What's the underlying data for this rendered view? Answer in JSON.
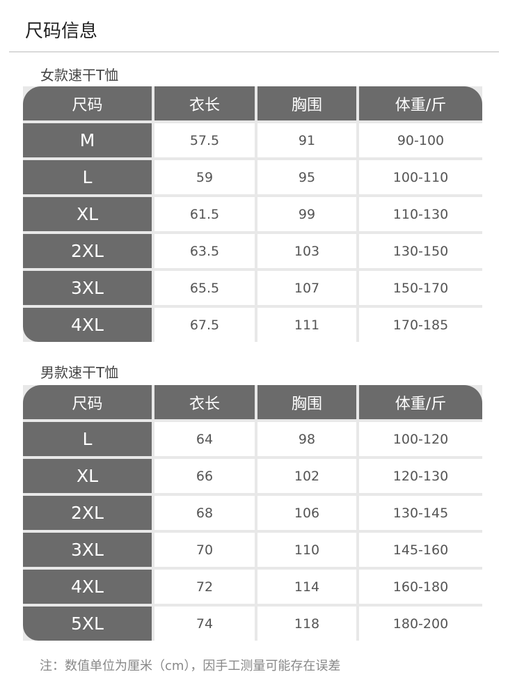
{
  "title": "尺码信息",
  "tables": [
    {
      "label": "女款速干T恤",
      "headers": [
        "尺码",
        "衣长",
        "胸围",
        "体重/斤"
      ],
      "rows": [
        [
          "M",
          "57.5",
          "91",
          "90-100"
        ],
        [
          "L",
          "59",
          "95",
          "100-110"
        ],
        [
          "XL",
          "61.5",
          "99",
          "110-130"
        ],
        [
          "2XL",
          "63.5",
          "103",
          "130-150"
        ],
        [
          "3XL",
          "65.5",
          "107",
          "150-170"
        ],
        [
          "4XL",
          "67.5",
          "111",
          "170-185"
        ]
      ]
    },
    {
      "label": "男款速干T恤",
      "headers": [
        "尺码",
        "衣长",
        "胸围",
        "体重/斤"
      ],
      "rows": [
        [
          "L",
          "64",
          "98",
          "100-120"
        ],
        [
          "XL",
          "66",
          "102",
          "120-130"
        ],
        [
          "2XL",
          "68",
          "106",
          "130-145"
        ],
        [
          "3XL",
          "70",
          "110",
          "145-160"
        ],
        [
          "4XL",
          "72",
          "114",
          "160-180"
        ],
        [
          "5XL",
          "74",
          "118",
          "180-200"
        ]
      ]
    }
  ],
  "note": "注：数值单位为厘米（cm），因手工测量可能存在误差"
}
